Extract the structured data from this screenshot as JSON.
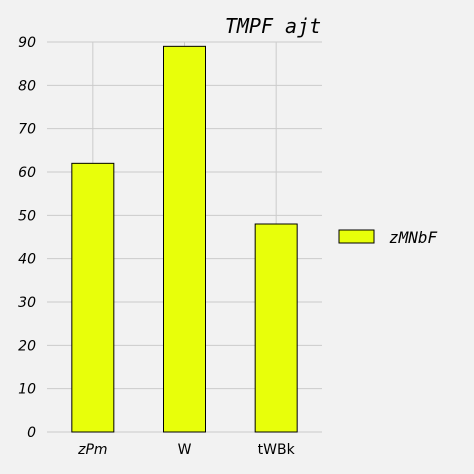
{
  "chart_data": {
    "type": "bar",
    "title": "TMPF ajt",
    "categories": [
      "zPm",
      "W",
      "tWBk"
    ],
    "category_italic": [
      true,
      false,
      false
    ],
    "series": [
      {
        "name": "zMNbF",
        "values": [
          62,
          89,
          48
        ],
        "color": "#e8ff0a"
      }
    ],
    "ylim": [
      0,
      90
    ],
    "yticks": [
      0,
      10,
      20,
      30,
      40,
      50,
      60,
      70,
      80,
      90
    ],
    "grid": true,
    "legend_position": "right",
    "xlabel": "",
    "ylabel": ""
  }
}
